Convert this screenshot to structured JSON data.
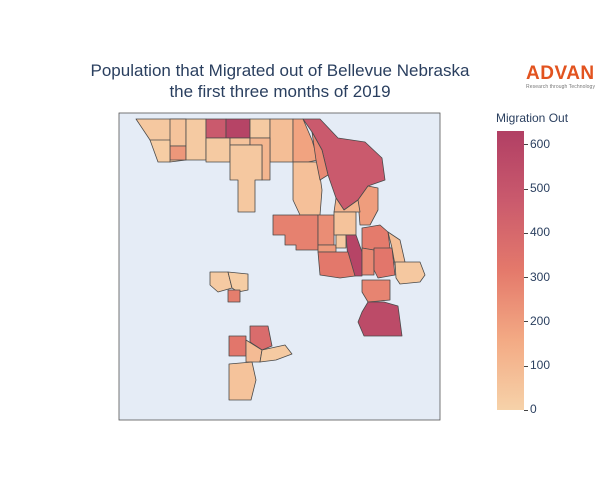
{
  "title_line1": "Population that Migrated out of Bellevue Nebraska",
  "title_line2": "the first three months of 2019",
  "logo": {
    "word": "ADVAN",
    "tagline": "Research through Technology",
    "color": "#e2531f"
  },
  "colorbar": {
    "title": "Migration Out",
    "min": 0,
    "max": 630,
    "ticks": [
      "600",
      "500",
      "400",
      "300",
      "200",
      "100",
      "0"
    ],
    "colorscale": [
      "#f6d2a9",
      "#f3aa84",
      "#e4796b",
      "#ca5a6d",
      "#b13f64"
    ]
  },
  "map_background": "#e5ecf6",
  "regions": [
    {
      "id": "nw-wedge",
      "value": 40
    },
    {
      "id": "n-1",
      "value": 60
    },
    {
      "id": "n-2",
      "value": 220
    },
    {
      "id": "n-3",
      "value": 30
    },
    {
      "id": "n-4",
      "value": 470
    },
    {
      "id": "n-5",
      "value": 600
    },
    {
      "id": "n-6",
      "value": 30
    },
    {
      "id": "n-7",
      "value": 80
    },
    {
      "id": "n-8",
      "value": 30
    },
    {
      "id": "n-9",
      "value": 60
    },
    {
      "id": "n-10",
      "value": 110
    },
    {
      "id": "n-11",
      "value": 180
    },
    {
      "id": "nw-strip",
      "value": 20
    },
    {
      "id": "center-tall",
      "value": 40
    },
    {
      "id": "center-right",
      "value": 70
    },
    {
      "id": "ne-big",
      "value": 470
    },
    {
      "id": "ne-inner",
      "value": 260
    },
    {
      "id": "east-1",
      "value": 200
    },
    {
      "id": "east-2",
      "value": 120
    },
    {
      "id": "mid-west",
      "value": 290
    },
    {
      "id": "mid-1",
      "value": 250
    },
    {
      "id": "mid-2",
      "value": 210
    },
    {
      "id": "mid-3",
      "value": 60
    },
    {
      "id": "mid-4",
      "value": 30
    },
    {
      "id": "mid-5",
      "value": 600
    },
    {
      "id": "mid-6",
      "value": 310
    },
    {
      "id": "mid-7",
      "value": 320
    },
    {
      "id": "mid-8",
      "value": 270
    },
    {
      "id": "se-1",
      "value": 330
    },
    {
      "id": "se-2",
      "value": 80
    },
    {
      "id": "se-3",
      "value": 40
    },
    {
      "id": "se-4",
      "value": 280
    },
    {
      "id": "se-5",
      "value": 560
    },
    {
      "id": "w-1",
      "value": 30
    },
    {
      "id": "w-2",
      "value": 20
    },
    {
      "id": "w-3",
      "value": 300
    },
    {
      "id": "s-1",
      "value": 330
    },
    {
      "id": "s-2",
      "value": 380
    },
    {
      "id": "s-3",
      "value": 90
    },
    {
      "id": "s-4",
      "value": 30
    },
    {
      "id": "s-5",
      "value": 60
    }
  ]
}
